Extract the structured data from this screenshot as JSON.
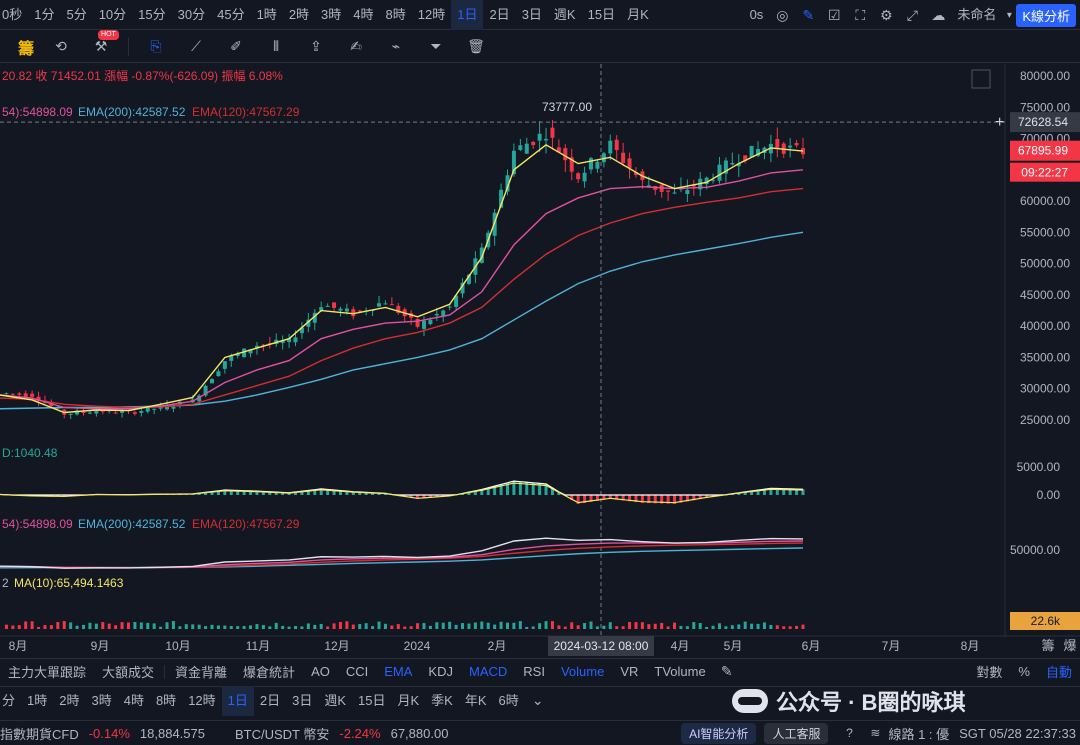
{
  "timeframes": [
    "0秒",
    "1分",
    "5分",
    "10分",
    "15分",
    "30分",
    "45分",
    "1時",
    "2時",
    "3時",
    "4時",
    "8時",
    "12時",
    "1日",
    "2日",
    "3日",
    "週K",
    "15日",
    "月K"
  ],
  "active_timeframe": "1日",
  "topbar_right": {
    "countdown": "0s",
    "layout_name": "未命名",
    "kline_btn": "K線分析"
  },
  "toolbar": {
    "chip_label": "籌",
    "hot_badge": "HOT"
  },
  "legend": {
    "ohlc": "20.82 收 71452.01 漲幅 -0.87%(-626.09) 振幅 6.08%",
    "ema_main": [
      "54):54898.09",
      "EMA(200):42587.52",
      "EMA(120):47567.29"
    ],
    "macd_label": "D:1040.48",
    "ema_sub": [
      "54):54898.09",
      "EMA(200):42587.52",
      "EMA(120):47567.29"
    ],
    "volume_label": [
      "2",
      "MA(10):65,494.1463"
    ]
  },
  "price_axis": [
    "80000.00",
    "75000.00",
    "70000.00",
    "65000.00",
    "60000.00",
    "55000.00",
    "50000.00",
    "45000.00",
    "40000.00",
    "35000.00",
    "30000.00",
    "25000.00"
  ],
  "macd_axis": [
    "5000.00",
    "0.00"
  ],
  "ema_axis": [
    "50000.00"
  ],
  "volume_tag": "22.6k",
  "crosshair": {
    "price_tag": "72628.54",
    "time_tag": "2024-03-12 08:00",
    "high_label": "73777.00"
  },
  "last_price": {
    "price": "67895.99",
    "countdown": "09:22:27"
  },
  "time_axis": [
    "8月",
    "9月",
    "10月",
    "11月",
    "12月",
    "2024",
    "2月",
    "4月",
    "5月",
    "6月",
    "7月",
    "8月"
  ],
  "time_axis_right": [
    "籌",
    "爆"
  ],
  "bottom_indicators": [
    "主力大單跟踪",
    "大額成交",
    "資金背離",
    "爆倉統計",
    "AO",
    "CCI",
    "EMA",
    "KDJ",
    "MACD",
    "RSI",
    "Volume",
    "VR",
    "TVolume"
  ],
  "active_indicators": [
    "EMA",
    "MACD",
    "Volume"
  ],
  "bottom_right": [
    "對數",
    "%",
    "自動"
  ],
  "bottom_timeframes": [
    "分",
    "1時",
    "2時",
    "3時",
    "4時",
    "8時",
    "12時",
    "1日",
    "2日",
    "3日",
    "週K",
    "15日",
    "月K",
    "季K",
    "年K",
    "6時"
  ],
  "bottom_active_tf": "1日",
  "watermark": "公众号 · B圈的咏琪",
  "status_bar": {
    "item1_name": "指數期貨CFD",
    "item1_change": "-0.14%",
    "item1_price": "18,884.575",
    "item2_name": "BTC/USDT 幣安",
    "item2_change": "-2.24%",
    "item2_price": "67,880.00",
    "ai_btn": "AI智能分析",
    "service_btn": "人工客服",
    "line": "線路 1 : 優",
    "clock": "SGT 05/28 22:37:33"
  },
  "colors": {
    "up": "#26a69a",
    "down": "#f23645",
    "ema_yellow": "#f5e663",
    "ema_pink": "#e052a0",
    "ema_red": "#d32f2f",
    "ema_blue": "#4fb3d9",
    "accent": "#2962ff"
  },
  "chart_data": {
    "type": "candlestick",
    "instrument": "BTC/USDT",
    "interval": "1日",
    "price_range": [
      25000,
      80000
    ],
    "x_months": [
      "8月",
      "9月",
      "10月",
      "11月",
      "12月",
      "2024",
      "2月",
      "3月",
      "4月",
      "5月"
    ],
    "close_path": [
      29300,
      29000,
      26000,
      26500,
      26200,
      27000,
      28000,
      34500,
      37000,
      37500,
      43500,
      42000,
      44000,
      40000,
      43000,
      52000,
      68000,
      71000,
      64000,
      69000,
      63000,
      61000,
      63500,
      67000,
      69000,
      67896
    ],
    "ema_fast": [
      29000,
      28200,
      26200,
      26600,
      26500,
      27500,
      28600,
      35000,
      36500,
      38000,
      42500,
      42000,
      43000,
      41500,
      43500,
      51000,
      65000,
      69000,
      66000,
      67000,
      64000,
      62000,
      63000,
      66000,
      68500,
      68000
    ],
    "ema_mid": [
      29000,
      28500,
      27000,
      26800,
      26800,
      27200,
      28000,
      31000,
      33000,
      34500,
      38000,
      39500,
      40500,
      40800,
      41800,
      45500,
      53000,
      58000,
      60500,
      62000,
      62300,
      62000,
      62200,
      63200,
      64500,
      65000
    ],
    "ema_120": [
      28500,
      28300,
      27500,
      27200,
      27000,
      27100,
      27500,
      29000,
      30500,
      32000,
      34500,
      36500,
      38000,
      39000,
      40500,
      43000,
      47500,
      51500,
      54500,
      56500,
      58000,
      59000,
      59800,
      60500,
      61500,
      62000
    ],
    "ema_200": [
      26800,
      26900,
      27000,
      27000,
      27100,
      27200,
      27400,
      28000,
      29000,
      30200,
      31500,
      33000,
      34000,
      35000,
      36200,
      38000,
      41000,
      44000,
      46800,
      48800,
      50300,
      51400,
      52300,
      53200,
      54200,
      55000
    ],
    "macd_hist": [
      100,
      -200,
      -300,
      100,
      50,
      150,
      200,
      900,
      700,
      400,
      1100,
      600,
      300,
      -700,
      -200,
      1000,
      2500,
      2000,
      -1600,
      -700,
      -1400,
      -1600,
      -500,
      400,
      1200,
      1040
    ],
    "high_marker": 73777
  }
}
